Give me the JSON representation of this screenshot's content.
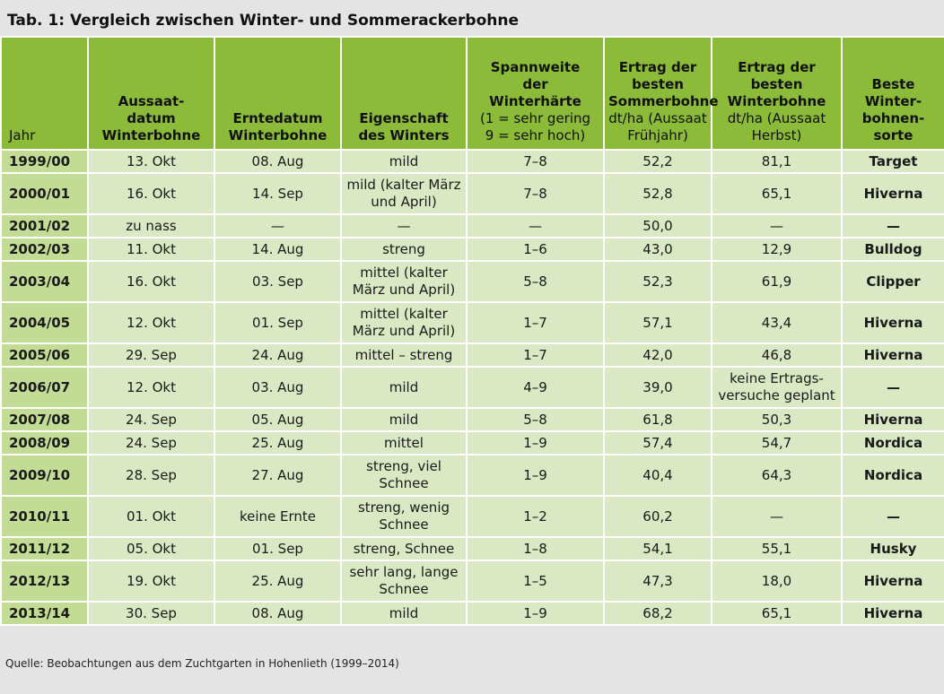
{
  "title": "Tab. 1: Vergleich zwischen Winter- und Sommerackerbohne",
  "headers": {
    "jahr": "Jahr",
    "aussaat": [
      "Aussaat-",
      "datum",
      "Winterbohne"
    ],
    "ernte": [
      "Erntedatum",
      "Winterbohne"
    ],
    "eigenschaft": [
      "Eigenschaft",
      "des Winters"
    ],
    "spannweite_bold": [
      "Spannweite",
      "der",
      "Winterhärte"
    ],
    "spannweite_norm": [
      "(1 = sehr gering",
      "9 = sehr hoch)"
    ],
    "sommer_bold": [
      "Ertrag der",
      "besten",
      "Sommerbohne"
    ],
    "sommer_norm": [
      "dt/ha (Aussaat",
      "Frühjahr)"
    ],
    "winter_bold": [
      "Ertrag der",
      "besten",
      "Winterbohne"
    ],
    "winter_norm": [
      "dt/ha (Aussaat",
      "Herbst)"
    ],
    "sorte": [
      "Beste",
      "Winter-",
      "bohnen-",
      "sorte"
    ]
  },
  "rows": [
    {
      "jahr": "1999/00",
      "aussaat": "13. Okt",
      "ernte": "08. Aug",
      "eigenschaft": "mild",
      "spannweite": "7–8",
      "sommer": "52,2",
      "winter": "81,1",
      "sorte": "Target",
      "tall": false
    },
    {
      "jahr": "2000/01",
      "aussaat": "16. Okt",
      "ernte": "14. Sep",
      "eigenschaft": "mild (kalter März und April)",
      "spannweite": "7–8",
      "sommer": "52,8",
      "winter": "65,1",
      "sorte": "Hiverna",
      "tall": true
    },
    {
      "jahr": "2001/02",
      "aussaat": "zu nass",
      "ernte": "—",
      "eigenschaft": "—",
      "spannweite": "—",
      "sommer": "50,0",
      "winter": "—",
      "sorte": "—",
      "tall": false
    },
    {
      "jahr": "2002/03",
      "aussaat": "11. Okt",
      "ernte": "14. Aug",
      "eigenschaft": "streng",
      "spannweite": "1–6",
      "sommer": "43,0",
      "winter": "12,9",
      "sorte": "Bulldog",
      "tall": false
    },
    {
      "jahr": "2003/04",
      "aussaat": "16. Okt",
      "ernte": "03. Sep",
      "eigenschaft": "mittel (kalter März und April)",
      "spannweite": "5–8",
      "sommer": "52,3",
      "winter": "61,9",
      "sorte": "Clipper",
      "tall": true
    },
    {
      "jahr": "2004/05",
      "aussaat": "12. Okt",
      "ernte": "01. Sep",
      "eigenschaft": "mittel (kalter März und April)",
      "spannweite": "1–7",
      "sommer": "57,1",
      "winter": "43,4",
      "sorte": "Hiverna",
      "tall": true
    },
    {
      "jahr": "2005/06",
      "aussaat": "29. Sep",
      "ernte": "24. Aug",
      "eigenschaft": "mittel – streng",
      "spannweite": "1–7",
      "sommer": "42,0",
      "winter": "46,8",
      "sorte": "Hiverna",
      "tall": false
    },
    {
      "jahr": "2006/07",
      "aussaat": "12. Okt",
      "ernte": "03. Aug",
      "eigenschaft": "mild",
      "spannweite": "4–9",
      "sommer": "39,0",
      "winter": "keine Ertrags- versuche geplant",
      "sorte": "—",
      "tall": true
    },
    {
      "jahr": "2007/08",
      "aussaat": "24. Sep",
      "ernte": "05. Aug",
      "eigenschaft": "mild",
      "spannweite": "5–8",
      "sommer": "61,8",
      "winter": "50,3",
      "sorte": "Hiverna",
      "tall": false
    },
    {
      "jahr": "2008/09",
      "aussaat": "24. Sep",
      "ernte": "25. Aug",
      "eigenschaft": "mittel",
      "spannweite": "1–9",
      "sommer": "57,4",
      "winter": "54,7",
      "sorte": "Nordica",
      "tall": false
    },
    {
      "jahr": "2009/10",
      "aussaat": "28. Sep",
      "ernte": "27. Aug",
      "eigenschaft": "streng, viel Schnee",
      "spannweite": "1–9",
      "sommer": "40,4",
      "winter": "64,3",
      "sorte": "Nordica",
      "tall": true
    },
    {
      "jahr": "2010/11",
      "aussaat": "01. Okt",
      "ernte": "keine Ernte",
      "eigenschaft": "streng, wenig Schnee",
      "spannweite": "1–2",
      "sommer": "60,2",
      "winter": "—",
      "sorte": "—",
      "tall": true
    },
    {
      "jahr": "2011/12",
      "aussaat": "05. Okt",
      "ernte": "01. Sep",
      "eigenschaft": "streng, Schnee",
      "spannweite": "1–8",
      "sommer": "54,1",
      "winter": "55,1",
      "sorte": "Husky",
      "tall": false
    },
    {
      "jahr": "2012/13",
      "aussaat": "19. Okt",
      "ernte": "25. Aug",
      "eigenschaft": "sehr lang, lange Schnee",
      "spannweite": "1–5",
      "sommer": "47,3",
      "winter": "18,0",
      "sorte": "Hiverna",
      "tall": true
    },
    {
      "jahr": "2013/14",
      "aussaat": "30. Sep",
      "ernte": "08. Aug",
      "eigenschaft": "mild",
      "spannweite": "1–9",
      "sommer": "68,2",
      "winter": "65,1",
      "sorte": "Hiverna",
      "tall": false
    }
  ],
  "source": "Quelle: Beobachtungen aus dem Zuchtgarten in Hohenlieth (1999–2014)",
  "colors": {
    "header_green": "#8cbb3a",
    "year_cell_green": "#c3dc95",
    "cell_green": "#dae8c3",
    "background_gray": "#e4e4e4"
  }
}
